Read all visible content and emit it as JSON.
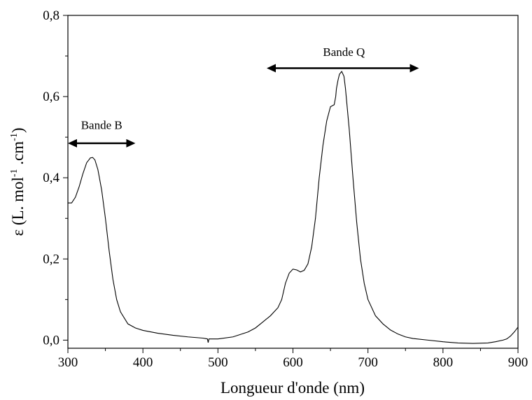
{
  "chart_data": {
    "type": "line",
    "xlabel": "Longueur d'onde (nm)",
    "ylabel_main": "ε (L. mol",
    "ylabel_sup1": "-1",
    "ylabel_mid": " .cm",
    "ylabel_sup2": "-1",
    "ylabel_end": ")",
    "xlim": [
      300,
      900
    ],
    "ylim": [
      -0.02,
      0.8
    ],
    "x_ticks": [
      300,
      400,
      500,
      600,
      700,
      800,
      900
    ],
    "x_tick_labels": [
      "300",
      "400",
      "500",
      "600",
      "700",
      "800",
      "900"
    ],
    "y_ticks": [
      0.0,
      0.2,
      0.4,
      0.6,
      0.8
    ],
    "y_tick_labels": [
      "0,0",
      "0,2",
      "0,4",
      "0,6",
      "0,8"
    ],
    "grid": false,
    "series": [
      {
        "x": [
          300,
          305,
          310,
          315,
          320,
          325,
          330,
          333,
          336,
          340,
          345,
          350,
          355,
          360,
          365,
          370,
          380,
          390,
          400,
          420,
          440,
          460,
          480,
          486,
          487,
          488,
          490,
          500,
          520,
          540,
          550,
          560,
          570,
          580,
          585,
          590,
          595,
          600,
          605,
          610,
          615,
          620,
          625,
          630,
          635,
          640,
          645,
          650,
          655,
          657,
          658,
          660,
          662,
          665,
          668,
          670,
          675,
          680,
          685,
          690,
          695,
          700,
          710,
          720,
          730,
          740,
          750,
          760,
          780,
          800,
          820,
          840,
          860,
          870,
          880,
          885,
          890,
          895,
          900
        ],
        "y": [
          0.338,
          0.338,
          0.352,
          0.378,
          0.41,
          0.437,
          0.449,
          0.45,
          0.444,
          0.42,
          0.37,
          0.3,
          0.22,
          0.15,
          0.1,
          0.07,
          0.04,
          0.03,
          0.024,
          0.017,
          0.012,
          0.008,
          0.005,
          0.003,
          -0.006,
          0.003,
          0.003,
          0.003,
          0.008,
          0.02,
          0.03,
          0.045,
          0.06,
          0.08,
          0.1,
          0.14,
          0.165,
          0.175,
          0.173,
          0.168,
          0.172,
          0.188,
          0.23,
          0.3,
          0.4,
          0.48,
          0.54,
          0.575,
          0.58,
          0.6,
          0.62,
          0.64,
          0.655,
          0.662,
          0.65,
          0.62,
          0.52,
          0.4,
          0.29,
          0.2,
          0.14,
          0.1,
          0.06,
          0.04,
          0.025,
          0.015,
          0.008,
          0.004,
          0.0,
          -0.004,
          -0.007,
          -0.008,
          -0.007,
          -0.004,
          0.0,
          0.003,
          0.01,
          0.02,
          0.032
        ],
        "color": "#000000"
      }
    ],
    "annotations": [
      {
        "label": "Bande B",
        "x_from": 300,
        "x_to": 390,
        "y": 0.485,
        "text_x": 345,
        "text_y": 0.52
      },
      {
        "label": "Bande Q",
        "x_from": 565,
        "x_to": 768,
        "y": 0.67,
        "text_x": 668,
        "text_y": 0.7
      }
    ]
  }
}
